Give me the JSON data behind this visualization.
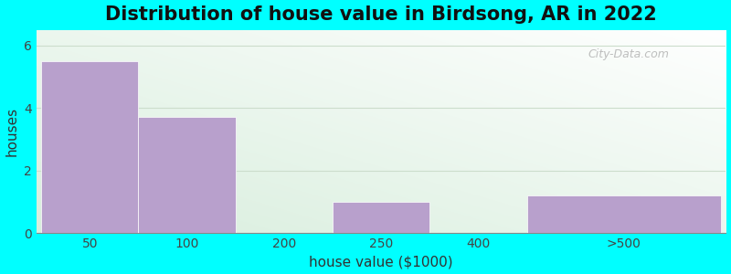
{
  "title": "Distribution of house value in Birdsong, AR in 2022",
  "xlabel": "house value ($1000)",
  "ylabel": "houses",
  "categories": [
    "50",
    "100",
    "200",
    "250",
    "400",
    ">500"
  ],
  "bar_lefts": [
    0,
    1,
    2,
    3,
    4,
    5
  ],
  "bar_widths": [
    1,
    1,
    1,
    1,
    1,
    2
  ],
  "values": [
    5.5,
    3.7,
    0,
    1.0,
    0,
    1.2
  ],
  "bar_color": "#b8a0cc",
  "bar_edgecolor": "#ffffff",
  "ylim": [
    0,
    6.5
  ],
  "yticks": [
    0,
    2,
    4,
    6
  ],
  "xlim": [
    -0.05,
    7.05
  ],
  "xtick_positions": [
    0.5,
    1.5,
    2.5,
    3.5,
    4.5,
    6.0
  ],
  "background_color": "#00ffff",
  "plot_bg_green": "#d8eedd",
  "plot_bg_white": "#ffffff",
  "grid_color": "#ccddcc",
  "title_fontsize": 15,
  "label_fontsize": 11,
  "tick_fontsize": 10,
  "watermark_text": "City-Data.com"
}
